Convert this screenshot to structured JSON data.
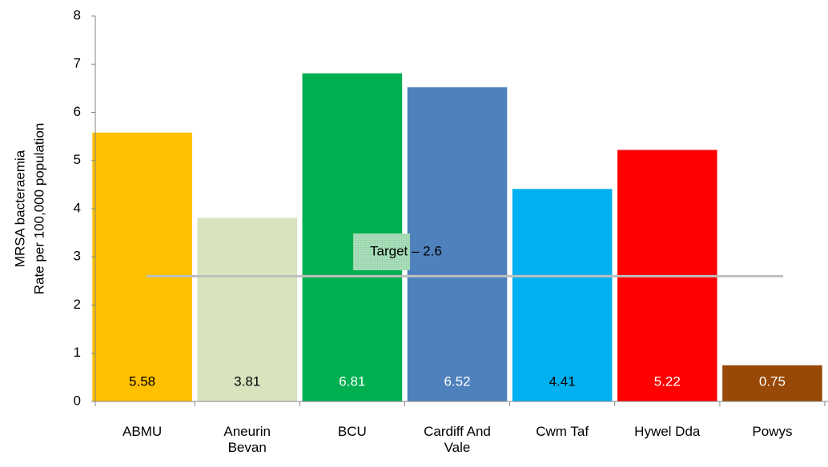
{
  "chart_data": {
    "type": "bar",
    "y_axis_label": [
      "MRSA bacteraemia",
      "Rate per 100,000 population"
    ],
    "categories": [
      "ABMU",
      "Aneurin Bevan",
      "BCU",
      "Cardiff And Vale",
      "Cwm Taf",
      "Hywel Dda",
      "Powys"
    ],
    "values": [
      5.58,
      3.81,
      6.81,
      6.52,
      4.41,
      5.22,
      0.75
    ],
    "colors": [
      "#ffc000",
      "#d7e4bd",
      "#00b050",
      "#4f81bd",
      "#00b0f0",
      "#ff0000",
      "#984807"
    ],
    "value_label_colors": [
      "#000000",
      "#000000",
      "#ffffff",
      "#ffffff",
      "#000000",
      "#ffffff",
      "#ffffff"
    ],
    "ylim": [
      0,
      8
    ],
    "yticks": [
      0,
      1,
      2,
      3,
      4,
      5,
      6,
      7,
      8
    ],
    "target": {
      "label": "Target – 2.6",
      "value": 2.6,
      "color": "#bfbfbf"
    }
  }
}
